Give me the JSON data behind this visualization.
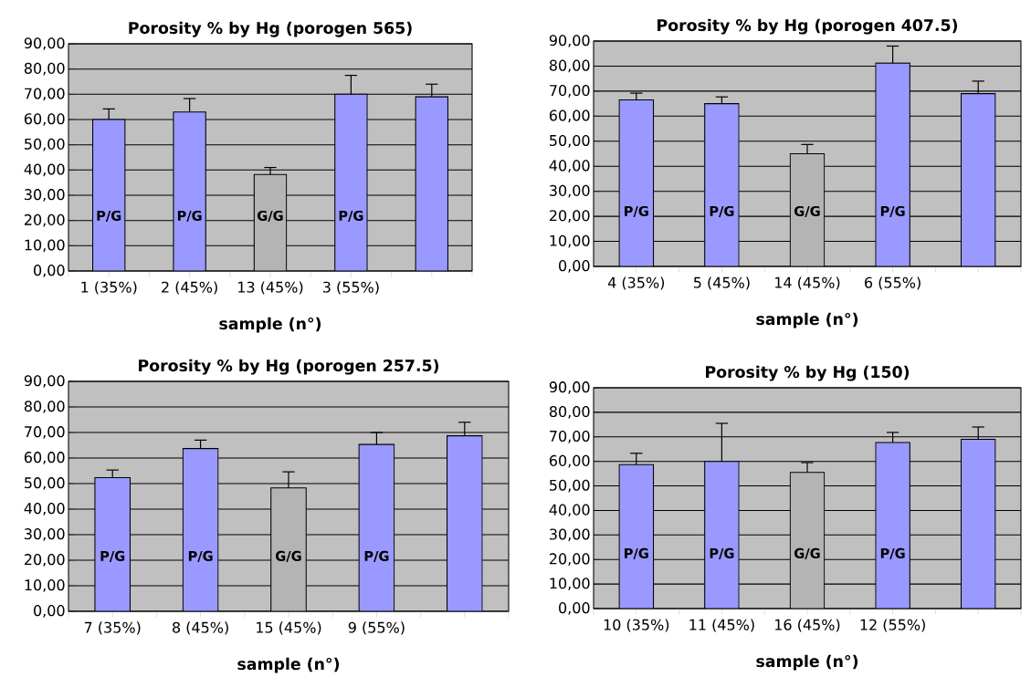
{
  "chart_data": [
    {
      "type": "bar",
      "title": "Porosity % by Hg (porogen 565)",
      "xlabel": "sample (n°)",
      "categories": [
        "1 (35%)",
        "2 (45%)",
        "13 (45%)",
        "3 (55%)",
        null
      ],
      "values": [
        60,
        63,
        38.2,
        70,
        69
      ],
      "errors": [
        [
          60,
          64.2
        ],
        [
          63,
          68.3
        ],
        [
          38.2,
          41
        ],
        [
          70,
          77.5
        ],
        [
          69,
          74
        ]
      ],
      "colors": [
        "#9999ff",
        "#9999ff",
        "#b4b4b4",
        "#9999ff",
        "#9999ff"
      ],
      "ylim": [
        0,
        90
      ],
      "yticks": [
        {
          "value": 0,
          "label": "0,00"
        },
        {
          "value": 10,
          "label": "10,00"
        },
        {
          "value": 20,
          "label": "20,00"
        },
        {
          "value": 30,
          "label": "30,00"
        },
        {
          "value": 40,
          "label": "40,00"
        },
        {
          "value": 50,
          "label": "50,00"
        },
        {
          "value": 60,
          "label": "60,00"
        },
        {
          "value": 70,
          "label": "70,00"
        },
        {
          "value": 80,
          "label": "80,00"
        },
        {
          "value": 90,
          "label": "90,00"
        }
      ],
      "grid": "y",
      "annotations": [
        "P/G",
        "P/G",
        "G/G",
        "P/G"
      ]
    },
    {
      "type": "bar",
      "title": "Porosity % by Hg (porogen 407.5)",
      "xlabel": "sample (n°)",
      "categories": [
        "4 (35%)",
        "5 (45%)",
        "14 (45%)",
        "6 (55%)",
        null
      ],
      "values": [
        66.5,
        65,
        45,
        81.2,
        69
      ],
      "errors": [
        [
          66.5,
          69.2
        ],
        [
          65,
          67.7
        ],
        [
          45,
          48.7
        ],
        [
          81.2,
          88
        ],
        [
          69,
          74
        ]
      ],
      "colors": [
        "#9999ff",
        "#9999ff",
        "#b4b4b4",
        "#9999ff",
        "#9999ff"
      ],
      "ylim": [
        0,
        90
      ],
      "yticks": [
        {
          "value": 0,
          "label": "0,00"
        },
        {
          "value": 10,
          "label": "10,00"
        },
        {
          "value": 20,
          "label": "20,00"
        },
        {
          "value": 30,
          "label": "30,00"
        },
        {
          "value": 40,
          "label": "40,00"
        },
        {
          "value": 50,
          "label": "50,00"
        },
        {
          "value": 60,
          "label": "60,00"
        },
        {
          "value": 70,
          "label": "70,00"
        },
        {
          "value": 80,
          "label": "80,00"
        },
        {
          "value": 90,
          "label": "90,00"
        }
      ],
      "grid": "y",
      "annotations": [
        "P/G",
        "P/G",
        "G/G",
        "P/G"
      ]
    },
    {
      "type": "bar",
      "title": "Porosity % by Hg (porogen 257.5)",
      "xlabel": "sample (n°)",
      "categories": [
        "7 (35%)",
        "8 (45%)",
        "15 (45%)",
        "9 (55%)",
        null
      ],
      "values": [
        52.3,
        63.7,
        48.3,
        65.3,
        68.7
      ],
      "errors": [
        [
          52.3,
          55.3
        ],
        [
          63.7,
          67
        ],
        [
          48.3,
          54.6
        ],
        [
          65.3,
          70
        ],
        [
          68.7,
          74
        ]
      ],
      "colors": [
        "#9999ff",
        "#9999ff",
        "#b4b4b4",
        "#9999ff",
        "#9999ff"
      ],
      "ylim": [
        0,
        90
      ],
      "yticks": [
        {
          "value": 0,
          "label": "0,00"
        },
        {
          "value": 10,
          "label": "10,00"
        },
        {
          "value": 20,
          "label": "20,00"
        },
        {
          "value": 30,
          "label": "30,00"
        },
        {
          "value": 40,
          "label": "40,00"
        },
        {
          "value": 50,
          "label": "50,00"
        },
        {
          "value": 60,
          "label": "60,00"
        },
        {
          "value": 70,
          "label": "70,00"
        },
        {
          "value": 80,
          "label": "80,00"
        },
        {
          "value": 90,
          "label": "90,00"
        }
      ],
      "grid": "y",
      "annotations": [
        "P/G",
        "P/G",
        "G/G",
        "P/G"
      ]
    },
    {
      "type": "bar",
      "title": "Porosity % by Hg (150)",
      "xlabel": "sample (n°)",
      "categories": [
        "10 (35%)",
        "11 (45%)",
        "16 (45%)",
        "12 (55%)",
        null
      ],
      "values": [
        58.7,
        60,
        55.5,
        67.7,
        69
      ],
      "errors": [
        [
          58.7,
          63.3
        ],
        [
          60,
          75.5
        ],
        [
          55.5,
          59.5
        ],
        [
          67.7,
          71.8
        ],
        [
          69,
          74
        ]
      ],
      "colors": [
        "#9999ff",
        "#9999ff",
        "#b4b4b4",
        "#9999ff",
        "#9999ff"
      ],
      "ylim": [
        0,
        90
      ],
      "yticks": [
        {
          "value": 0,
          "label": "0,00"
        },
        {
          "value": 10,
          "label": "10,00"
        },
        {
          "value": 20,
          "label": "20,00"
        },
        {
          "value": 30,
          "label": "30,00"
        },
        {
          "value": 40,
          "label": "40,00"
        },
        {
          "value": 50,
          "label": "50,00"
        },
        {
          "value": 60,
          "label": "60,00"
        },
        {
          "value": 70,
          "label": "70,00"
        },
        {
          "value": 80,
          "label": "80,00"
        },
        {
          "value": 90,
          "label": "90,00"
        }
      ],
      "grid": "y",
      "annotations": [
        "P/G",
        "P/G",
        "G/G",
        "P/G"
      ]
    }
  ]
}
